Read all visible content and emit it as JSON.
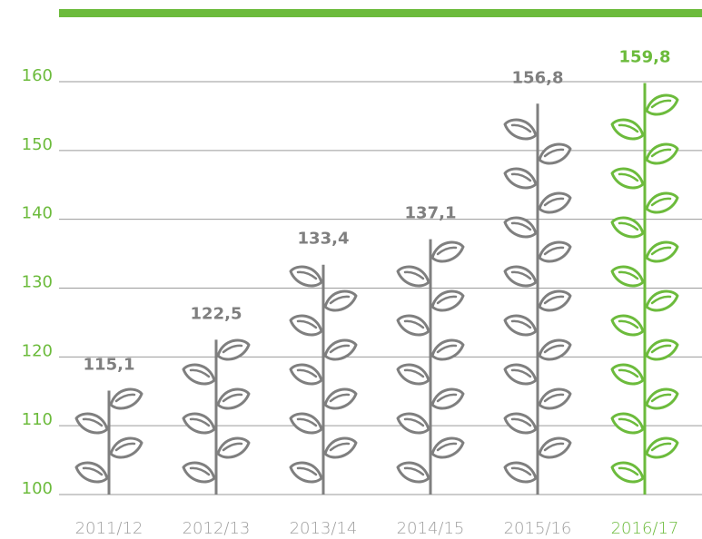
{
  "chart_data": {
    "type": "bar",
    "categories": [
      "2011/12",
      "2012/13",
      "2013/14",
      "2014/15",
      "2015/16",
      "2016/17"
    ],
    "values": [
      115.1,
      122.5,
      133.4,
      137.1,
      156.8,
      159.8
    ],
    "value_labels": [
      "115,1",
      "122,5",
      "133,4",
      "137,1",
      "156,8",
      "159,8"
    ],
    "colors": [
      "#7f7f7f",
      "#7f7f7f",
      "#7f7f7f",
      "#7f7f7f",
      "#7f7f7f",
      "#6cbb3c"
    ],
    "axis_color": "#6cbb3c",
    "ylim": [
      100,
      160
    ],
    "yticks": [
      100,
      110,
      120,
      130,
      140,
      150,
      160
    ],
    "grid": true
  }
}
